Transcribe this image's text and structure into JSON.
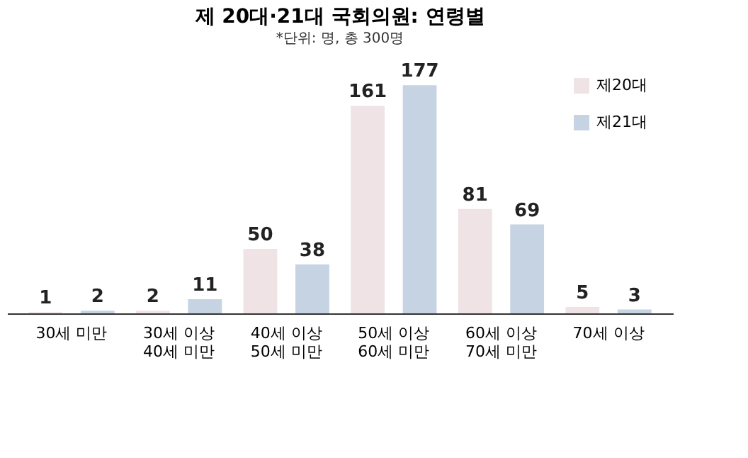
{
  "chart_data": {
    "type": "bar",
    "title": "제 20대·21대 국회의원: 연령별",
    "subtitle": "*단위: 명, 총 300명",
    "categories": [
      "30세 미만",
      "30세 이상\n40세 미만",
      "40세 이상\n50세 미만",
      "50세 이상\n60세 미만",
      "60세 이상\n70세 미만",
      "70세 이상"
    ],
    "series": [
      {
        "name": "제20대",
        "color": "#efe3e6",
        "values": [
          1,
          2,
          50,
          161,
          81,
          5
        ]
      },
      {
        "name": "제21대",
        "color": "#c5d3e3",
        "values": [
          2,
          11,
          38,
          177,
          69,
          3
        ]
      }
    ],
    "data_labels": true,
    "legend": "top right",
    "grid": false
  }
}
